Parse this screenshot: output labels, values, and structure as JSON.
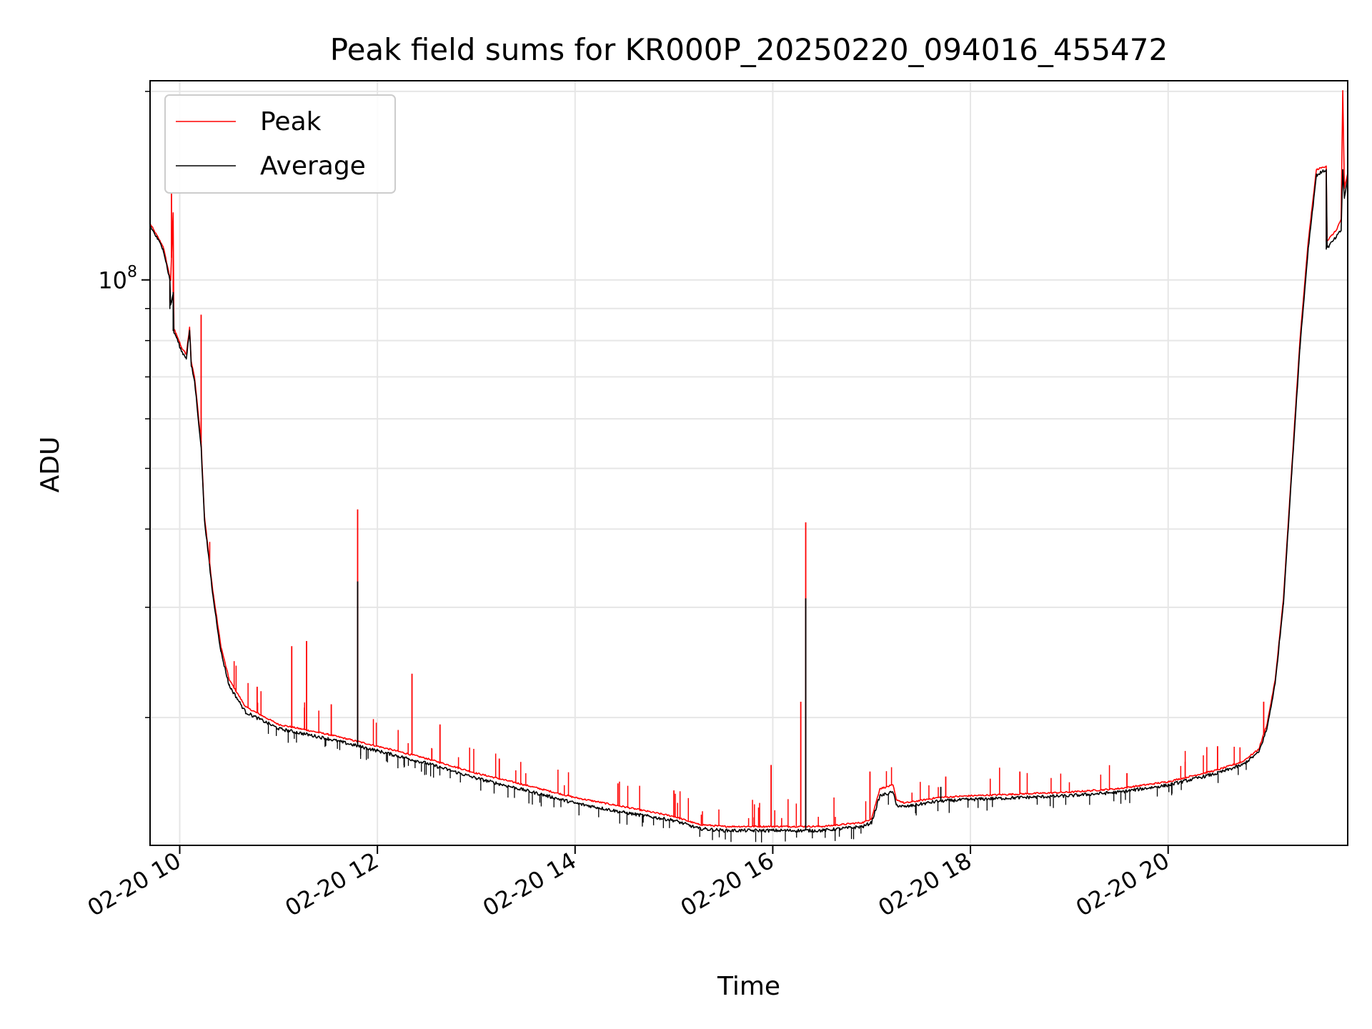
{
  "chart_data": {
    "type": "line",
    "title": "Peak field sums for KR000P_20250220_094016_455472",
    "xlabel": "Time",
    "ylabel": "ADU",
    "x_range": [
      "02-20 09:42",
      "02-20 21:49"
    ],
    "y_scale": "log",
    "y_range": [
      12500000,
      208000000
    ],
    "x_ticks": [
      "02-20 10",
      "02-20 12",
      "02-20 14",
      "02-20 16",
      "02-20 18",
      "02-20 20"
    ],
    "y_tick_labels": [
      {
        "value": 100000000,
        "base": "10",
        "exp": "8"
      }
    ],
    "grid": true,
    "legend": {
      "position": "upper left",
      "entries": [
        "Peak",
        "Average"
      ]
    },
    "colors": {
      "Peak": "#ff0000",
      "Average": "#000000"
    },
    "series": [
      {
        "name": "Peak",
        "x": [
          "02-20 09:42",
          "02-20 09:50",
          "02-20 09:54",
          "02-20 09:54",
          "02-20 09:56",
          "02-20 09:56",
          "02-20 09:58",
          "02-20 10:01",
          "02-20 10:04",
          "02-20 10:06",
          "02-20 10:07",
          "02-20 10:09",
          "02-20 10:13",
          "02-20 10:15",
          "02-20 10:20",
          "02-20 10:25",
          "02-20 10:30",
          "02-20 10:40",
          "02-20 11:00",
          "02-20 11:30",
          "02-20 12:00",
          "02-20 12:30",
          "02-20 13:00",
          "02-20 13:30",
          "02-20 14:00",
          "02-20 14:30",
          "02-20 15:00",
          "02-20 15:15",
          "02-20 15:30",
          "02-20 16:00",
          "02-20 16:30",
          "02-20 16:55",
          "02-20 17:00",
          "02-20 17:05",
          "02-20 17:13",
          "02-20 17:15",
          "02-20 17:20",
          "02-20 17:40",
          "02-20 18:00",
          "02-20 18:30",
          "02-20 19:00",
          "02-20 19:30",
          "02-20 20:00",
          "02-20 20:30",
          "02-20 20:45",
          "02-20 20:55",
          "02-20 21:00",
          "02-20 21:05",
          "02-20 21:10",
          "02-20 21:15",
          "02-20 21:20",
          "02-20 21:25",
          "02-20 21:30",
          "02-20 21:36",
          "02-20 21:36",
          "02-20 21:42",
          "02-20 21:45",
          "02-20 21:46",
          "02-20 21:47",
          "02-20 21:49"
        ],
        "y": [
          123000000,
          113000000,
          101000000,
          92000000,
          128000000,
          84000000,
          82000000,
          78000000,
          76000000,
          84000000,
          74000000,
          70000000,
          55000000,
          42000000,
          32000000,
          26000000,
          23000000,
          20800000,
          19500000,
          18800000,
          18000000,
          17200000,
          16300000,
          15600000,
          14900000,
          14400000,
          13900000,
          13500000,
          13400000,
          13400000,
          13400000,
          13600000,
          13800000,
          15400000,
          15600000,
          14800000,
          14600000,
          14900000,
          15000000,
          15100000,
          15200000,
          15400000,
          15800000,
          16500000,
          17000000,
          17800000,
          19500000,
          23000000,
          31000000,
          50000000,
          80000000,
          115000000,
          150000000,
          152000000,
          115000000,
          120000000,
          125000000,
          200000000,
          140000000,
          148000000
        ],
        "spikes": [
          {
            "x": "02-20 09:55",
            "y": 138000000
          },
          {
            "x": "02-20 10:13",
            "y": 88000000
          },
          {
            "x": "02-20 10:24",
            "y": 26500000
          },
          {
            "x": "02-20 10:47",
            "y": 22400000
          },
          {
            "x": "02-20 11:08",
            "y": 26000000
          },
          {
            "x": "02-20 11:17",
            "y": 26500000
          },
          {
            "x": "02-20 11:32",
            "y": 21000000
          },
          {
            "x": "02-20 11:48",
            "y": 43000000
          },
          {
            "x": "02-20 12:21",
            "y": 23500000
          },
          {
            "x": "02-20 12:38",
            "y": 19500000
          },
          {
            "x": "02-20 13:14",
            "y": 17200000
          },
          {
            "x": "02-20 14:26",
            "y": 15700000
          },
          {
            "x": "02-20 15:00",
            "y": 15300000
          },
          {
            "x": "02-20 15:59",
            "y": 16800000
          },
          {
            "x": "02-20 16:17",
            "y": 21200000
          },
          {
            "x": "02-20 16:20",
            "y": 41000000
          },
          {
            "x": "02-20 16:59",
            "y": 16400000
          },
          {
            "x": "02-20 17:45",
            "y": 16100000
          },
          {
            "x": "02-20 18:30",
            "y": 16400000
          },
          {
            "x": "02-20 19:35",
            "y": 16300000
          },
          {
            "x": "02-20 20:30",
            "y": 18000000
          },
          {
            "x": "02-20 20:58",
            "y": 21200000
          }
        ]
      },
      {
        "name": "Average",
        "x": [
          "02-20 09:42",
          "02-20 09:50",
          "02-20 09:54",
          "02-20 09:54",
          "02-20 09:56",
          "02-20 09:56",
          "02-20 09:58",
          "02-20 10:01",
          "02-20 10:04",
          "02-20 10:06",
          "02-20 10:07",
          "02-20 10:09",
          "02-20 10:13",
          "02-20 10:15",
          "02-20 10:20",
          "02-20 10:25",
          "02-20 10:30",
          "02-20 10:40",
          "02-20 11:00",
          "02-20 11:30",
          "02-20 12:00",
          "02-20 12:30",
          "02-20 13:00",
          "02-20 13:30",
          "02-20 14:00",
          "02-20 14:30",
          "02-20 15:00",
          "02-20 15:15",
          "02-20 15:30",
          "02-20 16:00",
          "02-20 16:30",
          "02-20 16:55",
          "02-20 17:00",
          "02-20 17:05",
          "02-20 17:13",
          "02-20 17:15",
          "02-20 17:20",
          "02-20 17:40",
          "02-20 18:00",
          "02-20 18:30",
          "02-20 19:00",
          "02-20 19:30",
          "02-20 20:00",
          "02-20 20:30",
          "02-20 20:45",
          "02-20 20:55",
          "02-20 21:00",
          "02-20 21:05",
          "02-20 21:10",
          "02-20 21:15",
          "02-20 21:20",
          "02-20 21:25",
          "02-20 21:30",
          "02-20 21:36",
          "02-20 21:36",
          "02-20 21:42",
          "02-20 21:45",
          "02-20 21:46",
          "02-20 21:47",
          "02-20 21:49"
        ],
        "y": [
          122000000,
          112000000,
          100000000,
          90000000,
          95000000,
          83000000,
          81000000,
          77000000,
          75000000,
          83000000,
          73000000,
          69000000,
          54000000,
          41500000,
          31500000,
          25500000,
          22500000,
          20400000,
          19200000,
          18500000,
          17700000,
          16900000,
          16000000,
          15300000,
          14600000,
          14100000,
          13700000,
          13300000,
          13200000,
          13200000,
          13200000,
          13400000,
          13600000,
          15000000,
          15200000,
          14500000,
          14400000,
          14700000,
          14800000,
          14900000,
          15000000,
          15200000,
          15600000,
          16300000,
          16800000,
          17600000,
          19200000,
          22700000,
          30500000,
          49000000,
          78000000,
          112000000,
          147000000,
          150000000,
          112000000,
          117000000,
          120000000,
          150000000,
          135000000,
          146000000
        ],
        "spikes": [
          {
            "x": "02-20 09:55",
            "y": 92000000
          },
          {
            "x": "02-20 11:48",
            "y": 33000000
          },
          {
            "x": "02-20 16:20",
            "y": 31000000
          },
          {
            "x": "02-20 17:42",
            "y": 15500000
          }
        ]
      }
    ]
  }
}
